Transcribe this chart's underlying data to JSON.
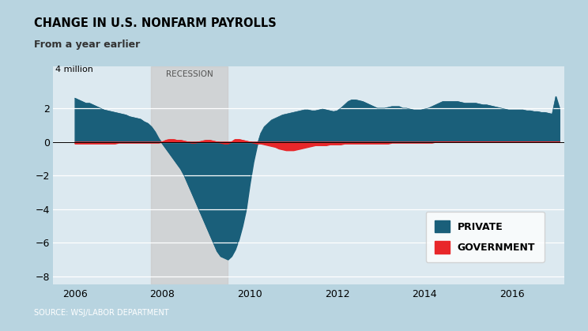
{
  "title_line1": "CHANGE IN U.S. NONFARM PAYROLLS",
  "title_line2": "From a year earlier",
  "ylabel_top": "4 million",
  "recession_label": "RECESSION",
  "recession_start": 2007.75,
  "recession_end": 2009.5,
  "source": "SOURCE: WSJ/LABOR DEPARTMENT",
  "private_color": "#1a5f7a",
  "government_color": "#e8272a",
  "recession_color": "#cccccc",
  "background_color": "#b8d4e0",
  "plot_bg_color": "#dce9f0",
  "header_bg": "#e0e0e0",
  "footer_bg": "#1a3a5c",
  "ylim": [
    -8.5,
    4.5
  ],
  "yticks": [
    -8,
    -6,
    -4,
    -2,
    0,
    2
  ],
  "xlim": [
    2005.5,
    2017.2
  ],
  "xticks": [
    2006,
    2008,
    2010,
    2012,
    2014,
    2016
  ],
  "private_x": [
    2006.0,
    2006.083,
    2006.167,
    2006.25,
    2006.333,
    2006.417,
    2006.5,
    2006.583,
    2006.667,
    2006.75,
    2006.833,
    2006.917,
    2007.0,
    2007.083,
    2007.167,
    2007.25,
    2007.333,
    2007.417,
    2007.5,
    2007.583,
    2007.667,
    2007.75,
    2007.833,
    2007.917,
    2008.0,
    2008.083,
    2008.167,
    2008.25,
    2008.333,
    2008.417,
    2008.5,
    2008.583,
    2008.667,
    2008.75,
    2008.833,
    2008.917,
    2009.0,
    2009.083,
    2009.167,
    2009.25,
    2009.333,
    2009.417,
    2009.5,
    2009.583,
    2009.667,
    2009.75,
    2009.833,
    2009.917,
    2010.0,
    2010.083,
    2010.167,
    2010.25,
    2010.333,
    2010.417,
    2010.5,
    2010.583,
    2010.667,
    2010.75,
    2010.833,
    2010.917,
    2011.0,
    2011.083,
    2011.167,
    2011.25,
    2011.333,
    2011.417,
    2011.5,
    2011.583,
    2011.667,
    2011.75,
    2011.833,
    2011.917,
    2012.0,
    2012.083,
    2012.167,
    2012.25,
    2012.333,
    2012.417,
    2012.5,
    2012.583,
    2012.667,
    2012.75,
    2012.833,
    2012.917,
    2013.0,
    2013.083,
    2013.167,
    2013.25,
    2013.333,
    2013.417,
    2013.5,
    2013.583,
    2013.667,
    2013.75,
    2013.833,
    2013.917,
    2014.0,
    2014.083,
    2014.167,
    2014.25,
    2014.333,
    2014.417,
    2014.5,
    2014.583,
    2014.667,
    2014.75,
    2014.833,
    2014.917,
    2015.0,
    2015.083,
    2015.167,
    2015.25,
    2015.333,
    2015.417,
    2015.5,
    2015.583,
    2015.667,
    2015.75,
    2015.833,
    2015.917,
    2016.0,
    2016.083,
    2016.167,
    2016.25,
    2016.333,
    2016.417,
    2016.5,
    2016.583,
    2016.667,
    2016.75,
    2016.833,
    2016.917,
    2017.0,
    2017.083
  ],
  "private_y": [
    2.6,
    2.5,
    2.4,
    2.3,
    2.3,
    2.2,
    2.1,
    2.0,
    1.9,
    1.85,
    1.8,
    1.75,
    1.7,
    1.65,
    1.6,
    1.5,
    1.45,
    1.4,
    1.35,
    1.2,
    1.1,
    0.9,
    0.6,
    0.2,
    -0.1,
    -0.4,
    -0.7,
    -1.0,
    -1.3,
    -1.6,
    -2.0,
    -2.5,
    -3.0,
    -3.5,
    -4.0,
    -4.5,
    -5.0,
    -5.5,
    -6.0,
    -6.5,
    -6.8,
    -6.9,
    -7.0,
    -6.8,
    -6.4,
    -5.8,
    -5.0,
    -4.0,
    -2.5,
    -1.2,
    -0.2,
    0.5,
    0.9,
    1.1,
    1.3,
    1.4,
    1.5,
    1.6,
    1.65,
    1.7,
    1.75,
    1.8,
    1.85,
    1.9,
    1.9,
    1.85,
    1.85,
    1.9,
    1.95,
    1.9,
    1.85,
    1.8,
    1.85,
    2.0,
    2.2,
    2.4,
    2.5,
    2.5,
    2.45,
    2.4,
    2.3,
    2.2,
    2.1,
    2.0,
    2.0,
    2.0,
    2.05,
    2.1,
    2.1,
    2.1,
    2.0,
    2.0,
    1.95,
    1.9,
    1.9,
    1.9,
    1.95,
    2.0,
    2.1,
    2.2,
    2.3,
    2.4,
    2.4,
    2.4,
    2.4,
    2.4,
    2.35,
    2.3,
    2.3,
    2.3,
    2.3,
    2.25,
    2.2,
    2.2,
    2.15,
    2.1,
    2.05,
    2.0,
    1.95,
    1.9,
    1.9,
    1.9,
    1.9,
    1.9,
    1.85,
    1.85,
    1.8,
    1.8,
    1.75,
    1.75,
    1.7,
    1.65,
    2.7,
    2.0
  ],
  "government_x": [
    2006.0,
    2006.083,
    2006.167,
    2006.25,
    2006.333,
    2006.417,
    2006.5,
    2006.583,
    2006.667,
    2006.75,
    2006.833,
    2006.917,
    2007.0,
    2007.083,
    2007.167,
    2007.25,
    2007.333,
    2007.417,
    2007.5,
    2007.583,
    2007.667,
    2007.75,
    2007.833,
    2007.917,
    2008.0,
    2008.083,
    2008.167,
    2008.25,
    2008.333,
    2008.417,
    2008.5,
    2008.583,
    2008.667,
    2008.75,
    2008.833,
    2008.917,
    2009.0,
    2009.083,
    2009.167,
    2009.25,
    2009.333,
    2009.417,
    2009.5,
    2009.583,
    2009.667,
    2009.75,
    2009.833,
    2009.917,
    2010.0,
    2010.083,
    2010.167,
    2010.25,
    2010.333,
    2010.417,
    2010.5,
    2010.583,
    2010.667,
    2010.75,
    2010.833,
    2010.917,
    2011.0,
    2011.083,
    2011.167,
    2011.25,
    2011.333,
    2011.417,
    2011.5,
    2011.583,
    2011.667,
    2011.75,
    2011.833,
    2011.917,
    2012.0,
    2012.083,
    2012.167,
    2012.25,
    2012.333,
    2012.417,
    2012.5,
    2012.583,
    2012.667,
    2012.75,
    2012.833,
    2012.917,
    2013.0,
    2013.083,
    2013.167,
    2013.25,
    2013.333,
    2013.417,
    2013.5,
    2013.583,
    2013.667,
    2013.75,
    2013.833,
    2013.917,
    2014.0,
    2014.083,
    2014.167,
    2014.25,
    2014.333,
    2014.417,
    2014.5,
    2014.583,
    2014.667,
    2014.75,
    2014.833,
    2014.917,
    2015.0,
    2015.083,
    2015.167,
    2015.25,
    2015.333,
    2015.417,
    2015.5,
    2015.583,
    2015.667,
    2015.75,
    2015.833,
    2015.917,
    2016.0,
    2016.083,
    2016.167,
    2016.25,
    2016.333,
    2016.417,
    2016.5,
    2016.583,
    2016.667,
    2016.75,
    2016.833,
    2016.917,
    2017.0,
    2017.083
  ],
  "government_y": [
    -0.1,
    -0.1,
    -0.1,
    -0.1,
    -0.1,
    -0.1,
    -0.1,
    -0.1,
    -0.1,
    -0.1,
    -0.1,
    -0.1,
    -0.05,
    -0.05,
    -0.05,
    -0.05,
    -0.05,
    -0.05,
    -0.05,
    -0.05,
    -0.05,
    -0.05,
    -0.05,
    -0.05,
    0.0,
    0.1,
    0.15,
    0.15,
    0.1,
    0.1,
    0.05,
    0.0,
    -0.05,
    -0.05,
    0.0,
    0.05,
    0.1,
    0.1,
    0.05,
    0.0,
    -0.05,
    -0.1,
    -0.1,
    0.0,
    0.15,
    0.15,
    0.1,
    0.05,
    0.0,
    -0.05,
    -0.1,
    -0.1,
    -0.15,
    -0.2,
    -0.25,
    -0.3,
    -0.4,
    -0.45,
    -0.5,
    -0.5,
    -0.5,
    -0.45,
    -0.4,
    -0.35,
    -0.3,
    -0.25,
    -0.2,
    -0.2,
    -0.2,
    -0.2,
    -0.15,
    -0.15,
    -0.15,
    -0.15,
    -0.1,
    -0.1,
    -0.1,
    -0.1,
    -0.1,
    -0.1,
    -0.1,
    -0.1,
    -0.1,
    -0.1,
    -0.1,
    -0.1,
    -0.1,
    -0.05,
    -0.05,
    -0.05,
    -0.05,
    -0.05,
    -0.05,
    -0.05,
    -0.05,
    -0.05,
    -0.05,
    -0.05,
    -0.05,
    0.0,
    0.0,
    0.0,
    0.0,
    0.0,
    0.0,
    0.0,
    0.0,
    0.0,
    0.0,
    0.0,
    0.0,
    0.0,
    0.0,
    0.0,
    0.0,
    0.0,
    0.0,
    0.0,
    0.0,
    0.0,
    0.0,
    0.0,
    0.0,
    0.0,
    0.0,
    0.0,
    0.0,
    0.0,
    0.0,
    0.0,
    0.0,
    0.0,
    0.0,
    0.0
  ]
}
